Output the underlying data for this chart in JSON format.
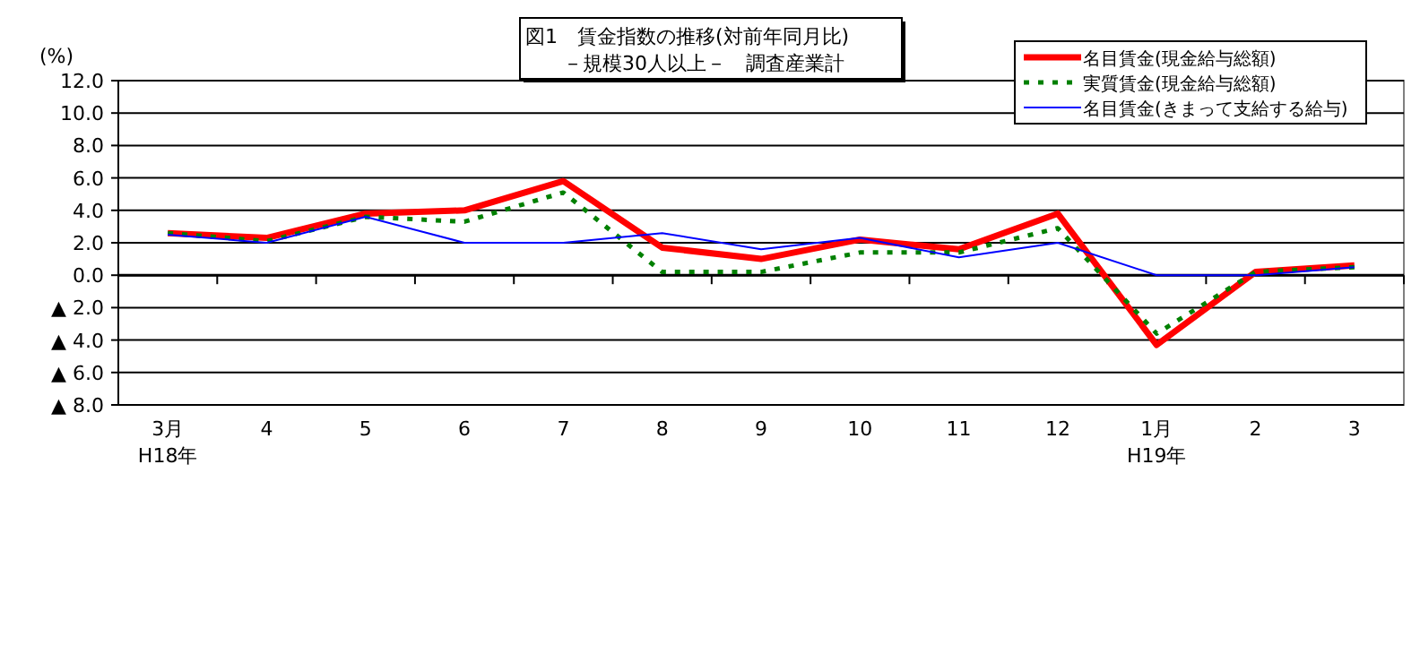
{
  "chart_data": {
    "type": "line",
    "title": "図1　賃金指数の推移(対前年同月比)",
    "subtitle": "－規模30人以上－　調査産業計",
    "ylabel": "(%)",
    "categories": [
      "3月\nH18年",
      "4",
      "5",
      "6",
      "7",
      "8",
      "9",
      "10",
      "11",
      "12",
      "1月\nH19年",
      "2",
      "3"
    ],
    "series": [
      {
        "name": "名目賃金(現金給与総額)",
        "color": "#ff0000",
        "line_style": "solid",
        "values": [
          2.6,
          2.3,
          3.8,
          4.0,
          5.8,
          1.7,
          1.0,
          2.2,
          1.6,
          3.8,
          -4.3,
          0.2,
          0.6
        ]
      },
      {
        "name": "実質賃金(現金給与総額)",
        "color": "#008000",
        "line_style": "dotted",
        "values": [
          2.6,
          2.1,
          3.6,
          3.3,
          5.1,
          0.2,
          0.2,
          1.4,
          1.4,
          2.9,
          -3.6,
          0.2,
          0.5
        ]
      },
      {
        "name": "名目賃金(きまって支給する給与)",
        "color": "#0000ff",
        "line_style": "solid",
        "values": [
          2.5,
          2.0,
          3.6,
          2.0,
          2.0,
          2.6,
          1.6,
          2.3,
          1.1,
          2.0,
          0.0,
          0.0,
          0.5
        ]
      }
    ],
    "ylim": [
      -8,
      12
    ],
    "yticks": [
      {
        "value": 12,
        "label": "12.0"
      },
      {
        "value": 10,
        "label": "10.0"
      },
      {
        "value": 8,
        "label": "8.0"
      },
      {
        "value": 6,
        "label": "6.0"
      },
      {
        "value": 4,
        "label": "4.0"
      },
      {
        "value": 2,
        "label": "2.0"
      },
      {
        "value": 0,
        "label": "0.0"
      },
      {
        "value": -2,
        "label": "▲ 2.0"
      },
      {
        "value": -4,
        "label": "▲ 4.0"
      },
      {
        "value": -6,
        "label": "▲ 6.0"
      },
      {
        "value": -8,
        "label": "▲ 8.0"
      }
    ],
    "grid": "y",
    "legend": "top right"
  }
}
